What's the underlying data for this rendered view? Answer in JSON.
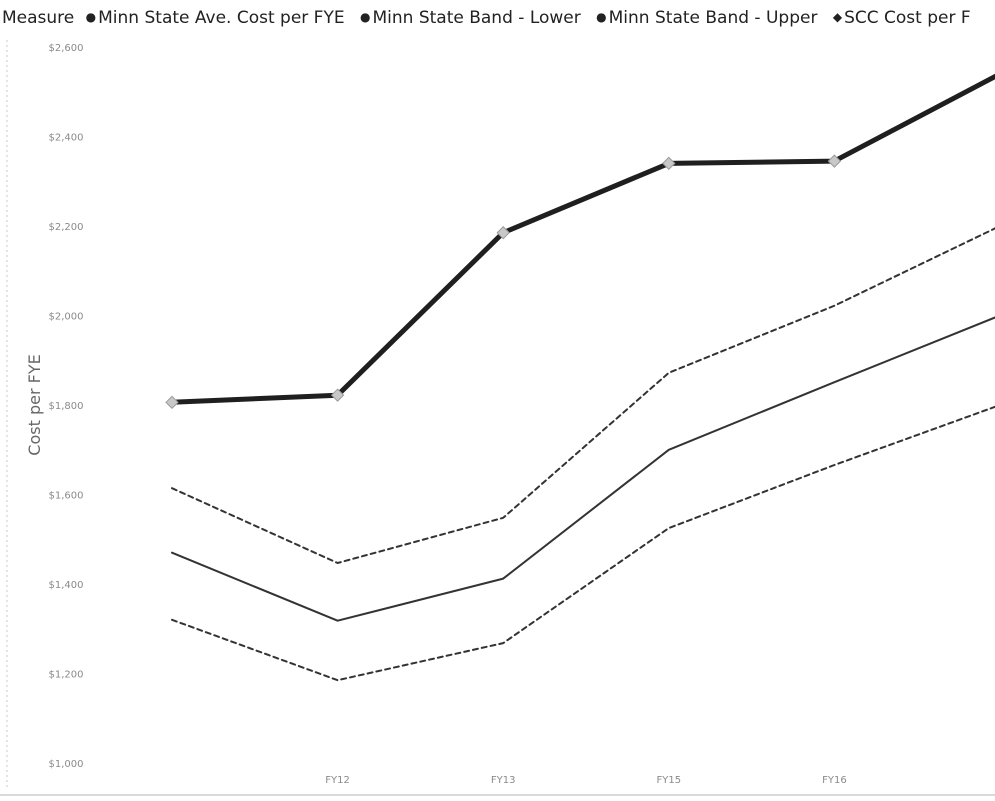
{
  "chart_data": {
    "type": "line",
    "ylabel": "Cost per FYE",
    "xlabel": "",
    "categories": [
      "",
      "FY12",
      "FY13",
      "FY15",
      "FY16",
      ""
    ],
    "ylim": [
      1000,
      2600
    ],
    "yticks": [
      1000,
      1200,
      1400,
      1600,
      1800,
      2000,
      2200,
      2400,
      2600
    ],
    "ytick_labels": [
      "$1,000",
      "$1,200",
      "$1,400",
      "$1,600",
      "$1,800",
      "$2,000",
      "$2,200",
      "$2,400",
      "$2,600"
    ],
    "legend": {
      "title": "Measure",
      "position": "top-left",
      "items": [
        {
          "label": "Minn State Ave. Cost per FYE",
          "marker": "●"
        },
        {
          "label": "Minn State Band - Lower",
          "marker": "●"
        },
        {
          "label": "Minn State Band - Upper",
          "marker": "●"
        },
        {
          "label": "SCC Cost per F",
          "marker": "◆"
        }
      ]
    },
    "series": [
      {
        "name": "Minn State Ave. Cost per FYE",
        "style": "solid",
        "width": 2,
        "color": "#333333",
        "values": [
          1470,
          1318,
          1412,
          1700,
          1851,
          2000
        ]
      },
      {
        "name": "Minn State Band - Lower",
        "style": "dashed",
        "width": 2,
        "color": "#333333",
        "values": [
          1320,
          1185,
          1268,
          1525,
          1666,
          1800
        ]
      },
      {
        "name": "Minn State Band - Upper",
        "style": "dashed",
        "width": 2,
        "color": "#333333",
        "values": [
          1614,
          1447,
          1548,
          1872,
          2022,
          2200
        ]
      },
      {
        "name": "SCC Cost per F",
        "style": "solid",
        "width": 5,
        "color": "#1f1f1f",
        "marker": "diamond",
        "values": [
          1806,
          1822,
          2185,
          2340,
          2345,
          2540
        ]
      }
    ]
  }
}
